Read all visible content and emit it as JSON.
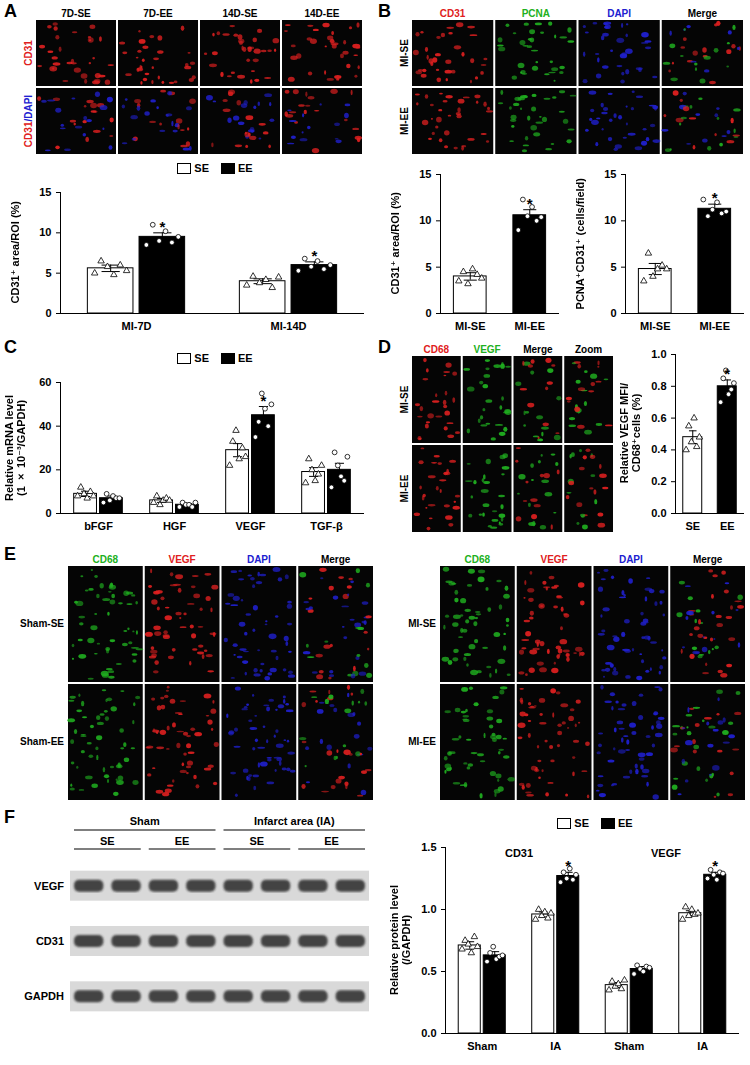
{
  "panels": [
    {
      "label": "A",
      "grids": [
        {
          "columns": [
            "7D-SE",
            "7D-EE",
            "14D-SE",
            "14D-EE"
          ],
          "rows": [
            {
              "text": "CD31",
              "color": "#e02020"
            },
            [
              {
                "text": "CD31",
                "color": "#e02020"
              },
              {
                "text": "/DAPI",
                "color": "#2020d0"
              }
            ]
          ]
        }
      ]
    },
    {
      "label": "B",
      "grids": [
        {
          "columns": [
            {
              "text": "CD31",
              "color": "#e02020"
            },
            {
              "text": "PCNA",
              "color": "#20b020"
            },
            {
              "text": "DAPI",
              "color": "#2020d0"
            },
            "Merge"
          ],
          "rows": [
            "MI-SE",
            "MI-EE"
          ]
        }
      ]
    },
    {
      "label": "C",
      "grids": []
    },
    {
      "label": "D",
      "grids": [
        {
          "columns": [
            {
              "text": "CD68",
              "color": "#e02020"
            },
            {
              "text": "VEGF",
              "color": "#20b020"
            },
            "Merge",
            "Zoom"
          ],
          "rows": [
            "MI-SE",
            "MI-EE"
          ]
        }
      ]
    },
    {
      "label": "E",
      "grids": [
        {
          "columns": [
            {
              "text": "CD68",
              "color": "#20b020"
            },
            {
              "text": "VEGF",
              "color": "#e02020"
            },
            {
              "text": "DAPI",
              "color": "#2020d0"
            },
            "Merge"
          ],
          "rows": [
            "Sham-SE",
            "Sham-EE"
          ]
        },
        {
          "columns": [
            {
              "text": "CD68",
              "color": "#20b020"
            },
            {
              "text": "VEGF",
              "color": "#e02020"
            },
            {
              "text": "DAPI",
              "color": "#2020d0"
            },
            "Merge"
          ],
          "rows": [
            "MI-SE",
            "MI-EE"
          ]
        }
      ]
    },
    {
      "label": "F",
      "grids": [],
      "blot": {
        "rows": [
          "VEGF",
          "CD31",
          "GAPDH"
        ],
        "groups": [
          "Sham",
          "Infarct area (IA)"
        ],
        "lanes": [
          "SE",
          "EE",
          "SE",
          "EE"
        ]
      }
    }
  ],
  "chart_data": [
    {
      "type": "bar",
      "ylabel": "CD31⁺ area/ROI (%)",
      "categories": [
        "MI-7D",
        "MI-14D"
      ],
      "ylim": [
        0,
        15
      ],
      "yticks": [
        0,
        5,
        10,
        15
      ],
      "legend": "top",
      "series": [
        {
          "name": "SE",
          "color": "#ffffff",
          "marker": "triangle",
          "values": [
            5.6,
            4.0
          ],
          "errors": [
            0.4,
            0.3
          ],
          "points": [
            [
              5.0,
              6.5,
              5.8,
              4.8,
              6.0,
              5.3
            ],
            [
              3.5,
              4.6,
              3.8,
              4.2,
              3.2,
              4.5
            ]
          ]
        },
        {
          "name": "EE",
          "color": "#000000",
          "marker": "circle",
          "values": [
            9.5,
            6.0
          ],
          "errors": [
            0.5,
            0.4
          ],
          "points": [
            [
              8.5,
              11.0,
              9.0,
              10.2,
              8.8,
              9.5
            ],
            [
              5.3,
              6.8,
              5.8,
              6.5,
              5.5,
              6.0
            ]
          ]
        }
      ],
      "annotations": [
        {
          "category": "MI-7D",
          "series": "EE",
          "text": "*"
        },
        {
          "category": "MI-14D",
          "series": "EE",
          "text": "*"
        }
      ]
    },
    {
      "type": "bar",
      "ylabel": "CD31⁺ area/ROI (%)",
      "categories": [
        "MI-SE",
        "MI-EE"
      ],
      "ylim": [
        0,
        15
      ],
      "yticks": [
        0,
        5,
        10,
        15
      ],
      "series": [
        {
          "color": "#ffffff",
          "marker": "triangle",
          "values": [
            4.0,
            null
          ],
          "errors": [
            0.4,
            null
          ],
          "points": [
            [
              3.5,
              4.5,
              3.2,
              4.8,
              4.2,
              3.8
            ],
            null
          ]
        },
        {
          "color": "#000000",
          "marker": "circle",
          "values": [
            null,
            10.6
          ],
          "errors": [
            null,
            0.6
          ],
          "points": [
            null,
            [
              9.0,
              12.3,
              10.5,
              11.5,
              10.0,
              10.4
            ]
          ]
        }
      ],
      "annotations": [
        {
          "category": "MI-EE",
          "text": "*"
        }
      ]
    },
    {
      "type": "bar",
      "ylabel": "PCNA⁺CD31⁺ (cells/field)",
      "categories": [
        "MI-SE",
        "MI-EE"
      ],
      "ylim": [
        0,
        15
      ],
      "yticks": [
        0,
        5,
        10,
        15
      ],
      "series": [
        {
          "color": "#ffffff",
          "marker": "triangle",
          "values": [
            4.8,
            null
          ],
          "errors": [
            0.6,
            null
          ],
          "points": [
            [
              3.5,
              6.5,
              4.0,
              4.8,
              5.2,
              4.8
            ],
            null
          ]
        },
        {
          "color": "#000000",
          "marker": "circle",
          "values": [
            null,
            11.3
          ],
          "errors": [
            null,
            0.5
          ],
          "points": [
            null,
            [
              12.3,
              10.5,
              11.2,
              12.0,
              10.8,
              11.0
            ]
          ]
        }
      ],
      "annotations": [
        {
          "category": "MI-EE",
          "text": "*"
        }
      ]
    },
    {
      "type": "bar",
      "ylabel": "Relative mRNA level\n(1 × 10⁻³/GAPDH)",
      "categories": [
        "bFGF",
        "HGF",
        "VEGF",
        "TGF-β"
      ],
      "ylim": [
        0,
        60
      ],
      "yticks": [
        0,
        20,
        40,
        60
      ],
      "legend": "top",
      "series": [
        {
          "name": "SE",
          "color": "#ffffff",
          "marker": "triangle",
          "values": [
            9,
            6,
            29,
            19
          ],
          "errors": [
            1.2,
            0.9,
            3.0,
            2.0
          ],
          "points": [
            [
              8,
              12,
              9,
              7,
              10,
              8
            ],
            [
              5,
              8,
              4,
              6,
              7,
              6
            ],
            [
              22,
              33,
              38,
              25,
              30,
              26
            ],
            [
              14,
              25,
              20,
              15,
              18,
              22
            ]
          ]
        },
        {
          "name": "EE",
          "color": "#000000",
          "marker": "circle",
          "values": [
            7,
            4,
            45,
            20
          ],
          "errors": [
            1.0,
            0.5,
            4.0,
            3.0
          ],
          "points": [
            [
              5,
              9,
              6,
              8,
              7,
              7
            ],
            [
              3,
              5,
              4,
              4,
              3,
              5
            ],
            [
              35,
              42,
              55,
              48,
              40,
              50
            ],
            [
              12,
              28,
              22,
              17,
              15,
              26
            ]
          ]
        }
      ],
      "annotations": [
        {
          "category": "VEGF",
          "series": "EE",
          "text": "*"
        }
      ]
    },
    {
      "type": "bar",
      "ylabel": "Relative VEGF MFI/\nCD68⁺cells (%)",
      "categories": [
        "SE",
        "EE"
      ],
      "ylim": [
        0,
        1.0
      ],
      "yticks": [
        {
          "value": 0,
          "label": "0.0"
        },
        0.2,
        0.4,
        0.6,
        0.8,
        {
          "value": 1,
          "label": "1.0"
        }
      ],
      "series": [
        {
          "color": "#ffffff",
          "marker": "triangle",
          "values": [
            0.48,
            null
          ],
          "errors": [
            0.04,
            null
          ],
          "points": [
            [
              0.4,
              0.55,
              0.45,
              0.6,
              0.42,
              0.48
            ],
            null
          ]
        },
        {
          "color": "#000000",
          "marker": "circle",
          "values": [
            null,
            0.8
          ],
          "errors": [
            null,
            0.04
          ],
          "points": [
            null,
            [
              0.7,
              0.85,
              0.9,
              0.75,
              0.78,
              0.82
            ]
          ]
        }
      ],
      "annotations": [
        {
          "category": "EE",
          "text": "*"
        }
      ]
    },
    {
      "type": "bar",
      "ylabel": "Relative protein level\n(/GAPDH)",
      "categories": [
        "Sham",
        "IA"
      ],
      "ylim": [
        0,
        1.5
      ],
      "yticks": [
        {
          "value": 0,
          "label": "0.0"
        },
        0.5,
        {
          "value": 1,
          "label": "1.0"
        },
        1.5
      ],
      "legend": "top",
      "facets": [
        {
          "title": "CD31",
          "series": [
            {
              "name": "SE",
              "color": "#ffffff",
              "marker": "triangle",
              "values": [
                0.71,
                0.96
              ],
              "errors": [
                0.03,
                0.02
              ],
              "points": [
                [
                  0.68,
                  0.75,
                  0.72,
                  0.65,
                  0.78,
                  0.7
                ],
                [
                  0.92,
                  1.0,
                  0.95,
                  0.98,
                  0.93,
                  0.97
                ]
              ]
            },
            {
              "name": "EE",
              "color": "#000000",
              "marker": "circle",
              "values": [
                0.63,
                1.27
              ],
              "errors": [
                0.03,
                0.03
              ],
              "points": [
                [
                  0.58,
                  0.65,
                  0.7,
                  0.6,
                  0.62,
                  0.63
                ],
                [
                  1.22,
                  1.3,
                  1.25,
                  1.33,
                  1.24,
                  1.28
                ]
              ]
            }
          ]
        },
        {
          "title": "VEGF",
          "series": [
            {
              "name": "SE",
              "color": "#ffffff",
              "marker": "triangle",
              "values": [
                0.39,
                0.97
              ],
              "errors": [
                0.02,
                0.02
              ],
              "points": [
                [
                  0.35,
                  0.42,
                  0.38,
                  0.4,
                  0.36,
                  0.43
                ],
                [
                  0.92,
                  1.02,
                  0.95,
                  1.0,
                  0.96,
                  0.97
                ]
              ]
            },
            {
              "name": "EE",
              "color": "#000000",
              "marker": "circle",
              "values": [
                0.52,
                1.28
              ],
              "errors": [
                0.02,
                0.02
              ],
              "points": [
                [
                  0.48,
                  0.55,
                  0.52,
                  0.5,
                  0.54,
                  0.53
                ],
                [
                  1.25,
                  1.32,
                  1.28,
                  1.24,
                  1.3,
                  1.29
                ]
              ]
            }
          ]
        }
      ],
      "annotations": [
        {
          "facet": "CD31",
          "category": "IA",
          "series": "EE",
          "text": "*"
        },
        {
          "facet": "VEGF",
          "category": "IA",
          "series": "EE",
          "text": "*"
        }
      ]
    }
  ]
}
